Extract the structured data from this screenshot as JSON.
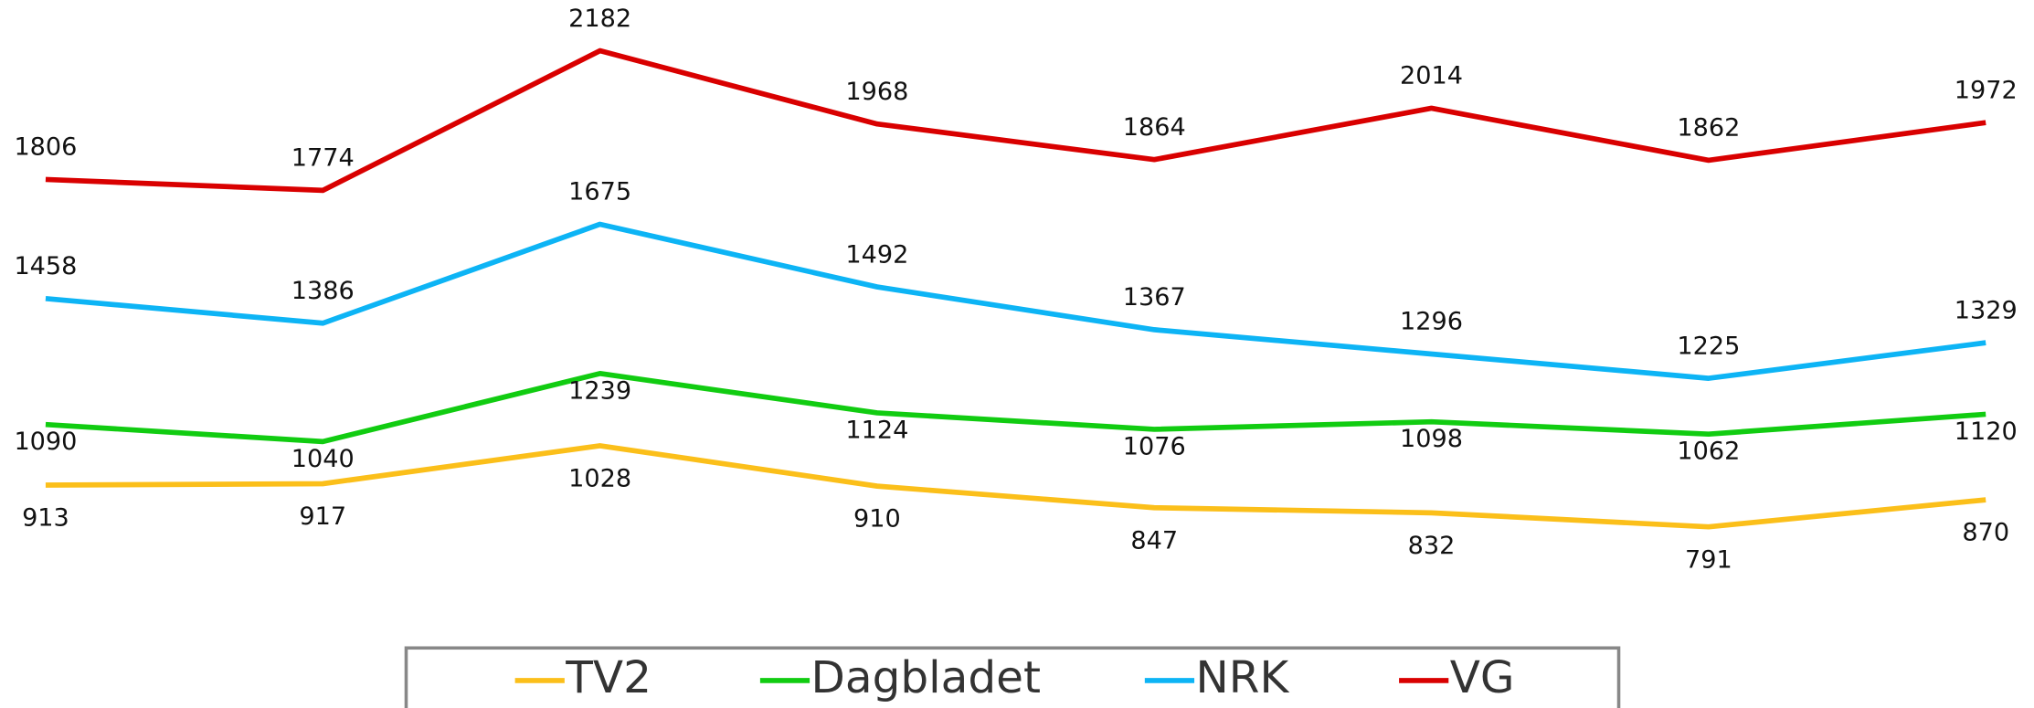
{
  "chart_data": {
    "type": "line",
    "categories": [
      null,
      null,
      null,
      null,
      null,
      null,
      null,
      null
    ],
    "series": [
      {
        "name": "TV2",
        "color": "#fbbf1a",
        "values": [
          913,
          917,
          1028,
          910,
          847,
          832,
          791,
          870
        ]
      },
      {
        "name": "Dagbladet",
        "color": "#11cc11",
        "values": [
          1090,
          1040,
          1239,
          1124,
          1076,
          1098,
          1062,
          1120
        ]
      },
      {
        "name": "NRK",
        "color": "#0db4f5",
        "values": [
          1458,
          1386,
          1675,
          1492,
          1367,
          1296,
          1225,
          1329
        ]
      },
      {
        "name": "VG",
        "color": "#d90000",
        "values": [
          1806,
          1774,
          2182,
          1968,
          1864,
          2014,
          1862,
          1972
        ]
      }
    ],
    "ylim": [
      540,
      2330
    ],
    "legend": "bottom"
  }
}
